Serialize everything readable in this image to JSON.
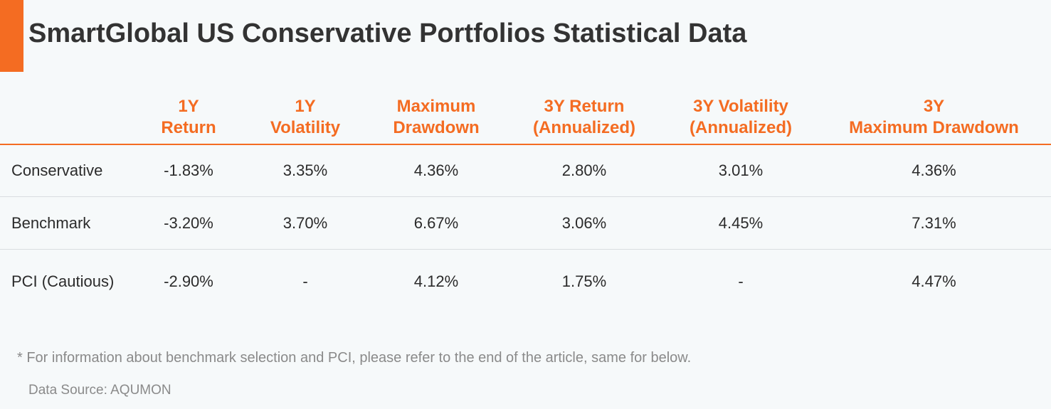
{
  "title": "SmartGlobal US Conservative Portfolios Statistical Data",
  "accent_color": "#f46c22",
  "table": {
    "headers": [
      {
        "line1": "",
        "line2": ""
      },
      {
        "line1": "1Y",
        "line2": "Return"
      },
      {
        "line1": "1Y",
        "line2": "Volatility"
      },
      {
        "line1": "Maximum",
        "line2": "Drawdown"
      },
      {
        "line1": "3Y Return",
        "line2": "(Annualized)"
      },
      {
        "line1": "3Y Volatility",
        "line2": "(Annualized)"
      },
      {
        "line1": "3Y",
        "line2": "Maximum Drawdown"
      }
    ],
    "rows": [
      [
        "Conservative",
        "-1.83%",
        "3.35%",
        "4.36%",
        "2.80%",
        "3.01%",
        "4.36%"
      ],
      [
        "Benchmark",
        "-3.20%",
        "3.70%",
        "6.67%",
        "3.06%",
        "4.45%",
        "7.31%"
      ],
      [
        "PCI (Cautious)",
        "-2.90%",
        "-",
        "4.12%",
        "1.75%",
        "-",
        "4.47%"
      ]
    ]
  },
  "footnote": "* For information about benchmark selection and PCI, please refer to the end of the article, same for below.",
  "source": "Data Source: AQUMON"
}
